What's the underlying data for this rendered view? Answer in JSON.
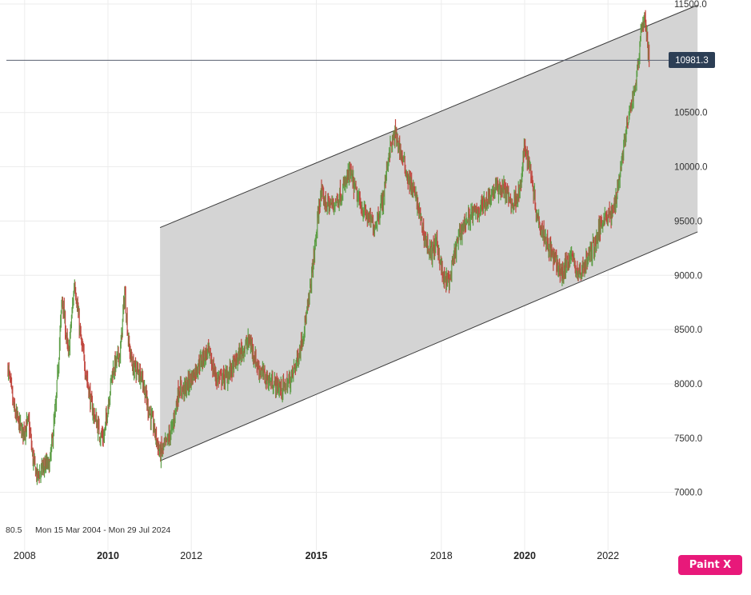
{
  "chart_data": {
    "type": "candlestick",
    "date_range_label": "Mon 15 Mar 2004 - Mon 29 Jul 2024",
    "left_truncated_value": "80.5",
    "y_ticks": [
      "11500.0",
      "10500.0",
      "10000.0",
      "9500.0",
      "9000.0",
      "8500.0",
      "8000.0",
      "7500.0",
      "7000.0"
    ],
    "x_ticks": [
      {
        "label": "2008",
        "year": 2008,
        "bold": false
      },
      {
        "label": "2010",
        "year": 2010,
        "bold": true
      },
      {
        "label": "2012",
        "year": 2012,
        "bold": false
      },
      {
        "label": "2015",
        "year": 2015,
        "bold": true
      },
      {
        "label": "2018",
        "year": 2018,
        "bold": false
      },
      {
        "label": "2020",
        "year": 2020,
        "bold": true
      },
      {
        "label": "2022",
        "year": 2022,
        "bold": false
      }
    ],
    "ylim": [
      6600,
      11500
    ],
    "current_price": {
      "label": "10981.3",
      "value": 10981.3
    },
    "channel": {
      "upper_start": {
        "year": 2011.25,
        "value": 9440
      },
      "upper_end": {
        "year": 2024.15,
        "value": 11490
      },
      "lower_start": {
        "year": 2011.25,
        "value": 7290
      },
      "lower_end": {
        "year": 2024.15,
        "value": 9400
      }
    },
    "price_path": [
      [
        2007.6,
        8150
      ],
      [
        2007.75,
        7750
      ],
      [
        2007.95,
        7550
      ],
      [
        2008.1,
        7650
      ],
      [
        2008.2,
        7300
      ],
      [
        2008.3,
        7150
      ],
      [
        2008.5,
        7250
      ],
      [
        2008.6,
        7250
      ],
      [
        2008.75,
        7800
      ],
      [
        2008.9,
        8800
      ],
      [
        2009.05,
        8250
      ],
      [
        2009.2,
        8950
      ],
      [
        2009.35,
        8400
      ],
      [
        2009.6,
        7800
      ],
      [
        2009.8,
        7550
      ],
      [
        2009.9,
        7500
      ],
      [
        2010.1,
        8100
      ],
      [
        2010.3,
        8300
      ],
      [
        2010.4,
        8850
      ],
      [
        2010.5,
        8350
      ],
      [
        2010.6,
        8150
      ],
      [
        2010.8,
        8100
      ],
      [
        2010.95,
        7800
      ],
      [
        2011.1,
        7600
      ],
      [
        2011.25,
        7350
      ],
      [
        2011.4,
        7450
      ],
      [
        2011.55,
        7600
      ],
      [
        2011.7,
        7950
      ],
      [
        2011.85,
        7950
      ],
      [
        2012.0,
        8050
      ],
      [
        2012.2,
        8200
      ],
      [
        2012.4,
        8300
      ],
      [
        2012.6,
        8050
      ],
      [
        2012.8,
        8050
      ],
      [
        2013.0,
        8150
      ],
      [
        2013.2,
        8300
      ],
      [
        2013.4,
        8400
      ],
      [
        2013.6,
        8150
      ],
      [
        2013.8,
        8050
      ],
      [
        2014.0,
        8000
      ],
      [
        2014.2,
        7950
      ],
      [
        2014.4,
        8050
      ],
      [
        2014.6,
        8300
      ],
      [
        2014.8,
        8700
      ],
      [
        2014.95,
        9200
      ],
      [
        2015.1,
        9750
      ],
      [
        2015.25,
        9650
      ],
      [
        2015.4,
        9650
      ],
      [
        2015.6,
        9750
      ],
      [
        2015.8,
        9950
      ],
      [
        2016.0,
        9700
      ],
      [
        2016.2,
        9550
      ],
      [
        2016.4,
        9450
      ],
      [
        2016.6,
        9700
      ],
      [
        2016.75,
        10150
      ],
      [
        2016.9,
        10300
      ],
      [
        2017.05,
        10100
      ],
      [
        2017.2,
        9900
      ],
      [
        2017.4,
        9700
      ],
      [
        2017.6,
        9350
      ],
      [
        2017.75,
        9200
      ],
      [
        2017.9,
        9300
      ],
      [
        2018.05,
        8950
      ],
      [
        2018.2,
        8950
      ],
      [
        2018.35,
        9250
      ],
      [
        2018.5,
        9450
      ],
      [
        2018.7,
        9550
      ],
      [
        2018.9,
        9600
      ],
      [
        2019.1,
        9700
      ],
      [
        2019.3,
        9800
      ],
      [
        2019.5,
        9800
      ],
      [
        2019.7,
        9650
      ],
      [
        2019.9,
        9800
      ],
      [
        2020.0,
        10200
      ],
      [
        2020.15,
        9950
      ],
      [
        2020.3,
        9550
      ],
      [
        2020.5,
        9350
      ],
      [
        2020.7,
        9150
      ],
      [
        2020.9,
        9000
      ],
      [
        2021.1,
        9200
      ],
      [
        2021.3,
        9000
      ],
      [
        2021.5,
        9150
      ],
      [
        2021.7,
        9300
      ],
      [
        2021.9,
        9550
      ],
      [
        2022.1,
        9550
      ],
      [
        2022.25,
        9850
      ],
      [
        2022.4,
        10250
      ],
      [
        2022.55,
        10550
      ],
      [
        2022.7,
        10850
      ],
      [
        2022.8,
        11300
      ],
      [
        2022.9,
        11350
      ],
      [
        2022.95,
        11100
      ],
      [
        2023.0,
        10981.3
      ]
    ]
  }
}
